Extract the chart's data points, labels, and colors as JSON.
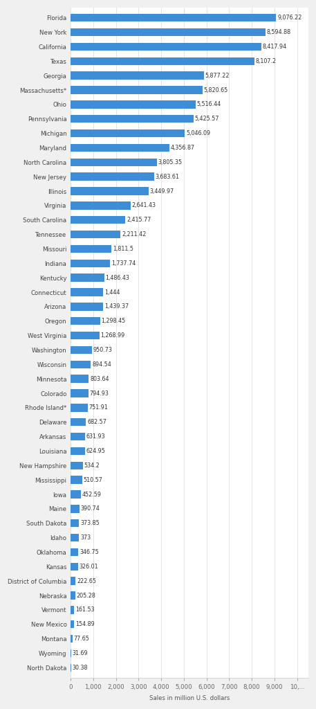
{
  "states": [
    "North Dakota",
    "Wyoming",
    "Montana",
    "New Mexico",
    "Vermont",
    "Nebraska",
    "District of Columbia",
    "Kansas",
    "Oklahoma",
    "Idaho",
    "South Dakota",
    "Maine",
    "Iowa",
    "Mississippi",
    "New Hampshire",
    "Louisiana",
    "Arkansas",
    "Delaware",
    "Rhode Island*",
    "Colorado",
    "Minnesota",
    "Wisconsin",
    "Washington",
    "West Virginia",
    "Oregon",
    "Arizona",
    "Connecticut",
    "Kentucky",
    "Indiana",
    "Missouri",
    "Tennessee",
    "South Carolina",
    "Virginia",
    "Illinois",
    "New Jersey",
    "North Carolina",
    "Maryland",
    "Michigan",
    "Pennsylvania",
    "Ohio",
    "Massachusetts*",
    "Georgia",
    "Texas",
    "California",
    "New York",
    "Florida"
  ],
  "values": [
    30.38,
    31.69,
    77.65,
    154.89,
    161.53,
    205.28,
    222.65,
    326.01,
    346.75,
    373.0,
    373.85,
    390.74,
    452.59,
    510.57,
    534.2,
    624.95,
    631.93,
    682.57,
    751.91,
    794.93,
    803.64,
    894.54,
    950.73,
    1268.99,
    1298.45,
    1439.37,
    1444.0,
    1486.43,
    1737.74,
    1811.5,
    2211.42,
    2415.77,
    2641.43,
    3449.97,
    3683.61,
    3805.35,
    4356.87,
    5046.09,
    5425.57,
    5516.44,
    5820.65,
    5877.22,
    8107.2,
    8417.94,
    8594.88,
    9076.22
  ],
  "value_labels": [
    "30.38",
    "31.69",
    "77.65",
    "154.89",
    "161.53",
    "205.28",
    "222.65",
    "326.01",
    "346.75",
    "373",
    "373.85",
    "390.74",
    "452.59",
    "510.57",
    "534.2",
    "624.95",
    "631.93",
    "682.57",
    "751.91",
    "794.93",
    "803.64",
    "894.54",
    "950.73",
    "1,268.99",
    "1,298.45",
    "1,439.37",
    "1,444",
    "1,486.43",
    "1,737.74",
    "1,811.5",
    "2,211.42",
    "2,415.77",
    "2,641.43",
    "3,449.97",
    "3,683.61",
    "3,805.35",
    "4,356.87",
    "5,046.09",
    "5,425.57",
    "5,516.44",
    "5,820.65",
    "5,877.22",
    "8,107.2",
    "8,417.94",
    "8,594.88",
    "9,076.22"
  ],
  "bar_color": "#3d8ed6",
  "outer_background": "#f0f0f0",
  "plot_background": "#ffffff",
  "xlabel": "Sales in million U.S. dollars",
  "xlim": [
    0,
    10500
  ],
  "xticks": [
    0,
    1000,
    2000,
    3000,
    4000,
    5000,
    6000,
    7000,
    8000,
    9000,
    10000
  ],
  "xtick_labels": [
    "0",
    "1,000",
    "2,000",
    "3,000",
    "4,000",
    "5,000",
    "6,000",
    "7,000",
    "8,000",
    "9,000",
    "10,..."
  ],
  "value_fontsize": 5.8,
  "label_fontsize": 6.2,
  "tick_fontsize": 6.2,
  "bar_height": 0.55
}
